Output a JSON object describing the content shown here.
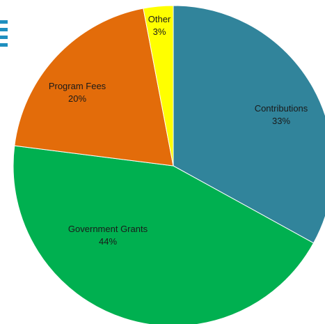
{
  "chart_data": {
    "type": "pie",
    "title": "",
    "slices": [
      {
        "label": "Contributions",
        "value": 33,
        "value_label": "33%",
        "color": "#31849b"
      },
      {
        "label": "Government Grants",
        "value": 44,
        "value_label": "44%",
        "color": "#00b050"
      },
      {
        "label": "Program Fees",
        "value": 20,
        "value_label": "20%",
        "color": "#e36c0a"
      },
      {
        "label": "Other",
        "value": 3,
        "value_label": "3%",
        "color": "#ffff00"
      }
    ],
    "start_angle_deg": 0,
    "direction": "clockwise"
  }
}
